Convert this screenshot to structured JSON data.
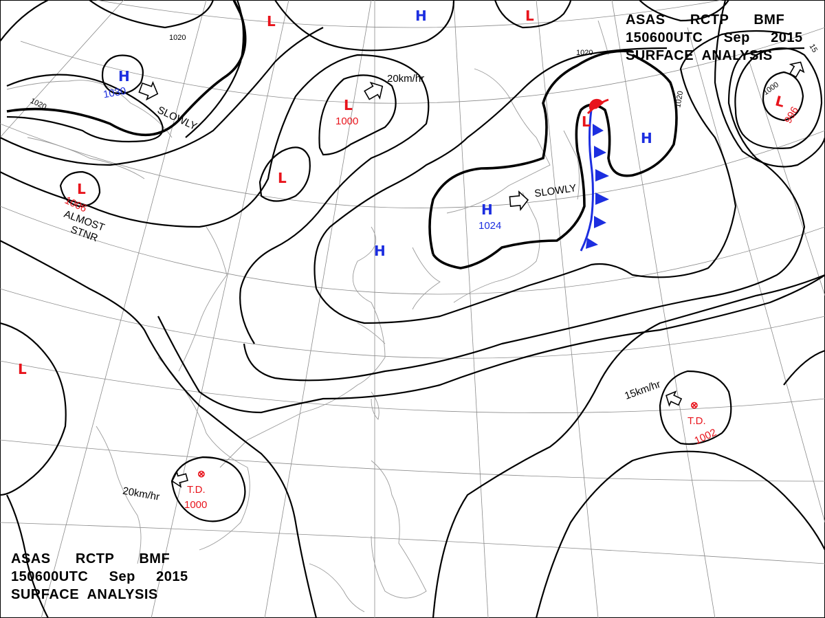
{
  "header": {
    "line1": [
      "ASAS",
      "RCTP",
      "BMF"
    ],
    "line2": [
      "150600UTC",
      "Sep",
      "2015"
    ],
    "line3": "SURFACE  ANALYSIS"
  },
  "footer": {
    "line1": [
      "ASAS",
      "RCTP",
      "BMF"
    ],
    "line2": [
      "150600UTC",
      "Sep",
      "2015"
    ],
    "line3": "SURFACE  ANALYSIS"
  },
  "colors": {
    "low": "#e8141c",
    "high": "#1c2ee0",
    "front_warm": "#e8141c",
    "front_cold": "#1c2ee0"
  },
  "pressure_systems": {
    "high_west": {
      "symbol": "H",
      "value": "1030",
      "motion": "SLOWLY"
    },
    "high_north": {
      "symbol": "H"
    },
    "high_japan": {
      "symbol": "H",
      "value": "1024",
      "motion": "SLOWLY"
    },
    "high_china": {
      "symbol": "H"
    },
    "high_pacific": {
      "symbol": "H"
    },
    "low_north1": {
      "symbol": "L"
    },
    "low_north2": {
      "symbol": "L"
    },
    "low_mongolia": {
      "symbol": "L",
      "value": "1000",
      "speed": "20km/hr"
    },
    "low_small": {
      "symbol": "L"
    },
    "low_west": {
      "symbol": "L",
      "value": "1006",
      "motion1": "ALMOST",
      "motion2": "STNR"
    },
    "low_far_west": {
      "symbol": "L"
    },
    "low_sakhalin": {
      "symbol": "L"
    },
    "low_ne": {
      "symbol": "L",
      "value": "996"
    },
    "td_south_china_sea": {
      "symbol": "⊗",
      "type": "T.D.",
      "value": "1000",
      "speed": "20km/hr"
    },
    "td_pacific": {
      "symbol": "⊗",
      "type": "T.D.",
      "value": "1002",
      "speed": "15km/hr"
    }
  },
  "isobar_labels": {
    "a": "1020",
    "b": "1020",
    "c": "1020",
    "d": "1020",
    "e": "1000",
    "f": "15"
  }
}
